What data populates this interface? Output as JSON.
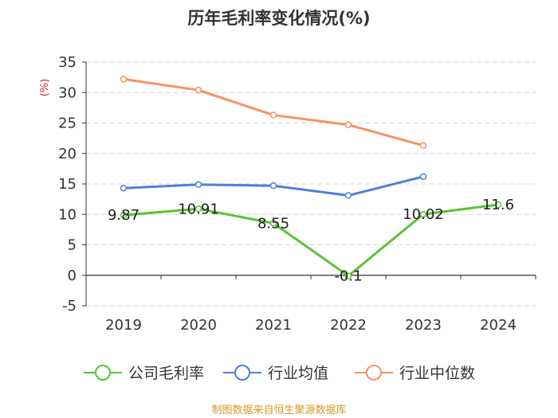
{
  "chart_data": {
    "type": "line",
    "title": "历年毛利率变化情况(%)",
    "ylabel": "(%)",
    "ylabel_color": "#e02020",
    "categories": [
      "2019",
      "2020",
      "2021",
      "2022",
      "2023",
      "2024"
    ],
    "ylim": [
      -5,
      35
    ],
    "yticks": [
      -5,
      0,
      5,
      10,
      15,
      20,
      25,
      30,
      35
    ],
    "ytick_labels": [
      "-5",
      "0",
      "5",
      "10",
      "15",
      "20",
      "25",
      "30",
      "35"
    ],
    "grid": true,
    "legend_position": "bottom",
    "series": [
      {
        "name": "公司毛利率",
        "color": "#5bc236",
        "values": [
          9.87,
          10.91,
          8.55,
          -0.1,
          10.02,
          11.6
        ],
        "labels": [
          "9.87",
          "10.91",
          "8.55",
          "-0.1",
          "10.02",
          "11.6"
        ]
      },
      {
        "name": "行业均值",
        "color": "#4f7fd9",
        "values": [
          14.3,
          14.9,
          14.7,
          13.1,
          16.2,
          null
        ]
      },
      {
        "name": "行业中位数",
        "color": "#f59365",
        "values": [
          32.2,
          30.4,
          26.3,
          24.7,
          21.3,
          null
        ]
      }
    ]
  },
  "source": {
    "text": "制图数据来自恒生聚源数据库",
    "color": "#d4982a"
  }
}
